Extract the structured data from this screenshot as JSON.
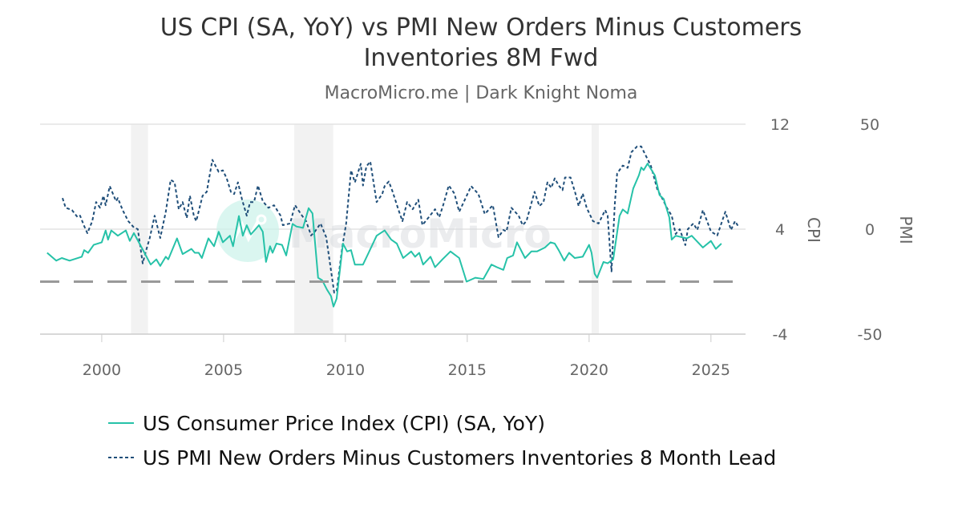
{
  "chart_data": {
    "type": "line",
    "title": "US CPI (SA, YoY) vs PMI New Orders Minus Customers Inventories 8M Fwd",
    "title_lines": [
      "US CPI (SA, YoY) vs PMI New Orders Minus Customers",
      "Inventories 8M Fwd"
    ],
    "subtitle": "MacroMicro.me | Dark Knight Noma",
    "watermark": "MacroMicro",
    "x_ticks": [
      "2000",
      "2005",
      "2010",
      "2015",
      "2020",
      "2025"
    ],
    "xlim": [
      1997.47,
      2026.42
    ],
    "y_axes": [
      {
        "label": "CPI",
        "ylim": [
          -4,
          12
        ],
        "ticks": [
          "12",
          "4",
          "-4"
        ],
        "side": "right"
      },
      {
        "label": "PMI",
        "ylim": [
          -50,
          50
        ],
        "ticks": [
          "50",
          "0",
          "-50"
        ],
        "side": "right"
      }
    ],
    "reference_line": {
      "axis": "CPI",
      "value": 0,
      "color": "#999999",
      "style": "dashed"
    },
    "recessions": [
      [
        2001.2,
        2001.9
      ],
      [
        2007.9,
        2009.5
      ],
      [
        2020.1,
        2020.4
      ]
    ],
    "grid": true,
    "legend_position": "bottom",
    "series": [
      {
        "name": "US Consumer Price Index (CPI) (SA, YoY)",
        "axis": "CPI",
        "color": "#26c2a8",
        "style": "solid",
        "x": [
          1997.76,
          1998.13,
          1998.36,
          1998.68,
          1999.18,
          1999.28,
          1999.44,
          1999.67,
          2000.0,
          2000.16,
          2000.26,
          2000.39,
          2000.66,
          2000.99,
          2001.15,
          2001.32,
          2001.58,
          2002.01,
          2002.24,
          2002.4,
          2002.63,
          2002.73,
          2003.09,
          2003.32,
          2003.68,
          2003.82,
          2003.98,
          2004.11,
          2004.38,
          2004.61,
          2004.8,
          2004.97,
          2005.26,
          2005.39,
          2005.63,
          2005.79,
          2005.95,
          2006.12,
          2006.45,
          2006.61,
          2006.74,
          2006.91,
          2007.01,
          2007.17,
          2007.4,
          2007.57,
          2007.83,
          2007.99,
          2008.26,
          2008.49,
          2008.65,
          2008.88,
          2009.05,
          2009.24,
          2009.41,
          2009.51,
          2009.64,
          2009.9,
          2010.07,
          2010.23,
          2010.39,
          2010.72,
          2010.95,
          2011.28,
          2011.61,
          2011.88,
          2012.11,
          2012.37,
          2012.7,
          2012.86,
          2013.03,
          2013.19,
          2013.49,
          2013.68,
          2013.98,
          2014.31,
          2014.67,
          2014.97,
          2015.33,
          2015.66,
          2015.99,
          2016.22,
          2016.48,
          2016.64,
          2016.88,
          2017.04,
          2017.37,
          2017.63,
          2017.86,
          2018.19,
          2018.42,
          2018.59,
          2018.75,
          2018.98,
          2019.18,
          2019.41,
          2019.74,
          2020.0,
          2020.1,
          2020.23,
          2020.33,
          2020.59,
          2020.76,
          2020.99,
          2021.25,
          2021.38,
          2021.58,
          2021.81,
          2022.04,
          2022.14,
          2022.24,
          2022.4,
          2022.7,
          2022.89,
          2023.06,
          2023.29,
          2023.39,
          2023.55,
          2024.01,
          2024.21,
          2024.67,
          2025.0,
          2025.2,
          2025.43
        ],
        "y": [
          2.2,
          1.6,
          1.8,
          1.6,
          1.9,
          2.4,
          2.2,
          2.8,
          3.0,
          3.9,
          3.2,
          3.9,
          3.5,
          3.9,
          3.1,
          3.7,
          2.8,
          1.3,
          1.7,
          1.2,
          1.9,
          1.7,
          3.3,
          2.1,
          2.5,
          2.2,
          2.2,
          1.8,
          3.3,
          2.7,
          3.8,
          3.0,
          3.5,
          2.7,
          5.0,
          3.5,
          4.3,
          3.6,
          4.3,
          3.8,
          1.5,
          2.7,
          2.2,
          2.9,
          2.8,
          2.0,
          4.4,
          4.2,
          4.1,
          5.6,
          5.2,
          0.3,
          0.1,
          -0.6,
          -1.1,
          -1.9,
          -1.3,
          2.9,
          2.3,
          2.4,
          1.3,
          1.3,
          2.2,
          3.5,
          3.9,
          3.2,
          2.9,
          1.8,
          2.3,
          1.9,
          2.2,
          1.3,
          1.9,
          1.1,
          1.7,
          2.3,
          1.8,
          0.0,
          0.3,
          0.2,
          1.3,
          1.1,
          0.9,
          1.8,
          2.0,
          3.0,
          1.8,
          2.3,
          2.3,
          2.6,
          3.0,
          2.9,
          2.4,
          1.6,
          2.2,
          1.8,
          1.9,
          2.8,
          2.2,
          0.6,
          0.3,
          1.5,
          1.4,
          1.7,
          5.0,
          5.5,
          5.2,
          7.1,
          8.1,
          8.7,
          8.5,
          9.0,
          8.1,
          6.6,
          6.3,
          4.9,
          3.2,
          3.5,
          3.3,
          3.5,
          2.6,
          3.1,
          2.5,
          2.9
        ]
      },
      {
        "name": "US PMI New Orders Minus Customers Inventories 8 Month Lead",
        "axis": "PMI",
        "color": "#1f4e79",
        "style": "dashed",
        "x": [
          1998.39,
          1998.52,
          1998.78,
          1999.01,
          1999.11,
          1999.28,
          1999.41,
          1999.61,
          1999.77,
          1999.93,
          2000.07,
          2000.16,
          2000.33,
          2000.59,
          2000.66,
          2000.86,
          2001.09,
          2001.32,
          2001.48,
          2001.68,
          2001.81,
          2001.97,
          2002.17,
          2002.4,
          2002.63,
          2002.83,
          2002.99,
          2003.16,
          2003.32,
          2003.49,
          2003.62,
          2003.78,
          2003.88,
          2004.14,
          2004.31,
          2004.54,
          2004.8,
          2004.97,
          2005.13,
          2005.3,
          2005.43,
          2005.59,
          2005.76,
          2005.95,
          2006.09,
          2006.25,
          2006.41,
          2006.61,
          2006.84,
          2007.07,
          2007.34,
          2007.43,
          2007.73,
          2007.93,
          2008.22,
          2008.39,
          2008.59,
          2008.75,
          2008.98,
          2009.21,
          2009.54,
          2009.64,
          2009.87,
          2010.03,
          2010.23,
          2010.39,
          2010.63,
          2010.72,
          2010.86,
          2011.02,
          2011.28,
          2011.51,
          2011.61,
          2011.78,
          2011.94,
          2012.17,
          2012.34,
          2012.53,
          2012.76,
          2012.99,
          2013.16,
          2013.42,
          2013.68,
          2013.85,
          2014.01,
          2014.24,
          2014.47,
          2014.67,
          2014.9,
          2015.16,
          2015.46,
          2015.72,
          2016.05,
          2016.28,
          2016.48,
          2016.61,
          2016.81,
          2017.11,
          2017.27,
          2017.43,
          2017.76,
          2017.96,
          2018.13,
          2018.29,
          2018.45,
          2018.59,
          2018.75,
          2018.91,
          2019.01,
          2019.24,
          2019.44,
          2019.57,
          2019.74,
          2019.9,
          2020.16,
          2020.39,
          2020.66,
          2020.76,
          2020.92,
          2021.05,
          2021.15,
          2021.38,
          2021.58,
          2021.74,
          2021.97,
          2022.14,
          2022.3,
          2022.53,
          2022.8,
          2023.03,
          2023.19,
          2023.39,
          2023.55,
          2023.72,
          2023.95,
          2024.05,
          2024.28,
          2024.44,
          2024.67,
          2024.84,
          2025.0,
          2025.26,
          2025.59,
          2025.82,
          2025.99,
          2026.15
        ],
        "y": [
          14.8,
          10.2,
          9.1,
          5.7,
          6.4,
          1.5,
          -1.9,
          3.8,
          12.9,
          10.2,
          15.9,
          11.4,
          20.5,
          13.3,
          14.8,
          9.1,
          3.8,
          0.8,
          0.0,
          -16.3,
          -10.6,
          -4.2,
          6.4,
          -4.2,
          8.3,
          23.5,
          22.3,
          9.5,
          12.9,
          5.3,
          15.9,
          6.4,
          3.8,
          15.9,
          17.8,
          33.0,
          27.3,
          28.0,
          24.2,
          17.8,
          16.7,
          22.3,
          14.0,
          6.4,
          12.9,
          12.9,
          20.8,
          13.3,
          10.2,
          11.4,
          6.4,
          1.9,
          2.7,
          11.4,
          6.4,
          3.8,
          -3.0,
          -1.1,
          2.7,
          -3.8,
          -30.3,
          -29.5,
          -8.7,
          2.7,
          28.0,
          22.3,
          31.1,
          20.8,
          29.9,
          32.2,
          12.9,
          16.7,
          20.5,
          22.7,
          17.8,
          9.5,
          3.8,
          12.9,
          9.5,
          14.0,
          1.9,
          5.7,
          9.5,
          5.7,
          11.4,
          20.8,
          17.0,
          8.3,
          14.0,
          20.5,
          16.7,
          7.2,
          11.4,
          -3.8,
          -0.4,
          -1.1,
          10.2,
          6.4,
          1.9,
          3.8,
          17.8,
          11.0,
          12.9,
          22.3,
          19.7,
          24.2,
          20.8,
          18.6,
          24.6,
          24.6,
          17.0,
          11.0,
          17.0,
          10.2,
          3.8,
          2.7,
          9.1,
          6.4,
          -20.1,
          11.4,
          26.5,
          30.3,
          29.2,
          36.7,
          39.4,
          39.4,
          35.6,
          30.3,
          18.9,
          14.0,
          10.2,
          6.4,
          -2.3,
          0.0,
          -7.6,
          0.0,
          2.7,
          -0.4,
          9.1,
          3.8,
          -1.1,
          -3.0,
          8.3,
          -0.4,
          3.8,
          0.8
        ]
      }
    ]
  }
}
